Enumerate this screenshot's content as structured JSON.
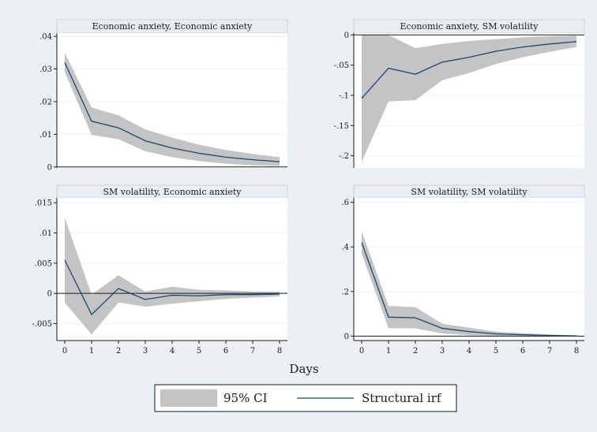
{
  "chart_data": {
    "type": "line",
    "xlabel": "Days",
    "legend": {
      "position": "bottom",
      "entries": [
        "95% CI",
        "Structural irf"
      ]
    },
    "colors": {
      "ci": "#c4c4c4",
      "line": "#1a476f",
      "background": "#eaf0f4"
    },
    "panels": [
      {
        "title": "Economic anxiety, Economic anxiety",
        "x": [
          0,
          1,
          2,
          3,
          4,
          5,
          6,
          7,
          8
        ],
        "irf": [
          0.032,
          0.014,
          0.012,
          0.008,
          0.0058,
          0.0042,
          0.003,
          0.0022,
          0.0016
        ],
        "ci_lower": [
          0.029,
          0.0098,
          0.0085,
          0.0048,
          0.003,
          0.0018,
          0.001,
          0.0005,
          0.0003
        ],
        "ci_upper": [
          0.035,
          0.0182,
          0.0158,
          0.0115,
          0.009,
          0.0068,
          0.0052,
          0.004,
          0.003
        ],
        "ylim": [
          -0.0003,
          0.041
        ],
        "yticks": [
          0,
          0.01,
          0.02,
          0.03,
          0.04
        ],
        "ytick_labels": [
          "0",
          ".01",
          ".02",
          ".03",
          ".04"
        ]
      },
      {
        "title": "Economic anxiety, SM volatility",
        "x": [
          0,
          1,
          2,
          3,
          4,
          5,
          6,
          7,
          8
        ],
        "irf": [
          -0.105,
          -0.055,
          -0.065,
          -0.045,
          -0.037,
          -0.027,
          -0.02,
          -0.015,
          -0.011
        ],
        "ci_lower": [
          -0.21,
          -0.11,
          -0.108,
          -0.075,
          -0.063,
          -0.048,
          -0.037,
          -0.028,
          -0.02
        ],
        "ci_upper": [
          0.0,
          0.0,
          -0.022,
          -0.015,
          -0.01,
          -0.007,
          -0.004,
          -0.002,
          -0.001
        ],
        "ylim": [
          -0.22,
          0.003
        ],
        "yticks": [
          -0.2,
          -0.15,
          -0.1,
          -0.05,
          0
        ],
        "ytick_labels": [
          "-.2",
          "-.15",
          "-.1",
          "-.05",
          "0"
        ]
      },
      {
        "title": "SM volatility, Economic anxiety",
        "x": [
          0,
          1,
          2,
          3,
          4,
          5,
          6,
          7,
          8
        ],
        "irf": [
          0.0055,
          -0.0035,
          0.0008,
          -0.001,
          -0.0003,
          -0.0004,
          -0.0002,
          -0.0002,
          -0.0001
        ],
        "ci_lower": [
          -0.0015,
          -0.0068,
          -0.0015,
          -0.0022,
          -0.0017,
          -0.0013,
          -0.0009,
          -0.0007,
          -0.0005
        ],
        "ci_upper": [
          0.0125,
          -0.0002,
          0.003,
          0.0003,
          0.0011,
          0.0006,
          0.0005,
          0.0003,
          0.0003
        ],
        "ylim": [
          -0.0078,
          0.0158
        ],
        "yticks": [
          -0.005,
          0,
          0.005,
          0.01,
          0.015
        ],
        "ytick_labels": [
          "-.005",
          "0",
          ".005",
          ".01",
          ".015"
        ]
      },
      {
        "title": "SM volatility, SM volatility",
        "x": [
          0,
          1,
          2,
          3,
          4,
          5,
          6,
          7,
          8
        ],
        "irf": [
          0.42,
          0.085,
          0.082,
          0.035,
          0.02,
          0.01,
          0.006,
          0.003,
          0.001
        ],
        "ci_lower": [
          0.37,
          0.035,
          0.035,
          0.012,
          0.004,
          0.001,
          0.0,
          0.0,
          0.0
        ],
        "ci_upper": [
          0.47,
          0.135,
          0.13,
          0.055,
          0.038,
          0.02,
          0.013,
          0.007,
          0.003
        ],
        "ylim": [
          -0.02,
          0.62
        ],
        "yticks": [
          0,
          0.2,
          0.4,
          0.6
        ],
        "ytick_labels": [
          "0",
          ".2",
          ".4",
          ".6"
        ]
      }
    ],
    "xticks": [
      0,
      1,
      2,
      3,
      4,
      5,
      6,
      7,
      8
    ]
  }
}
